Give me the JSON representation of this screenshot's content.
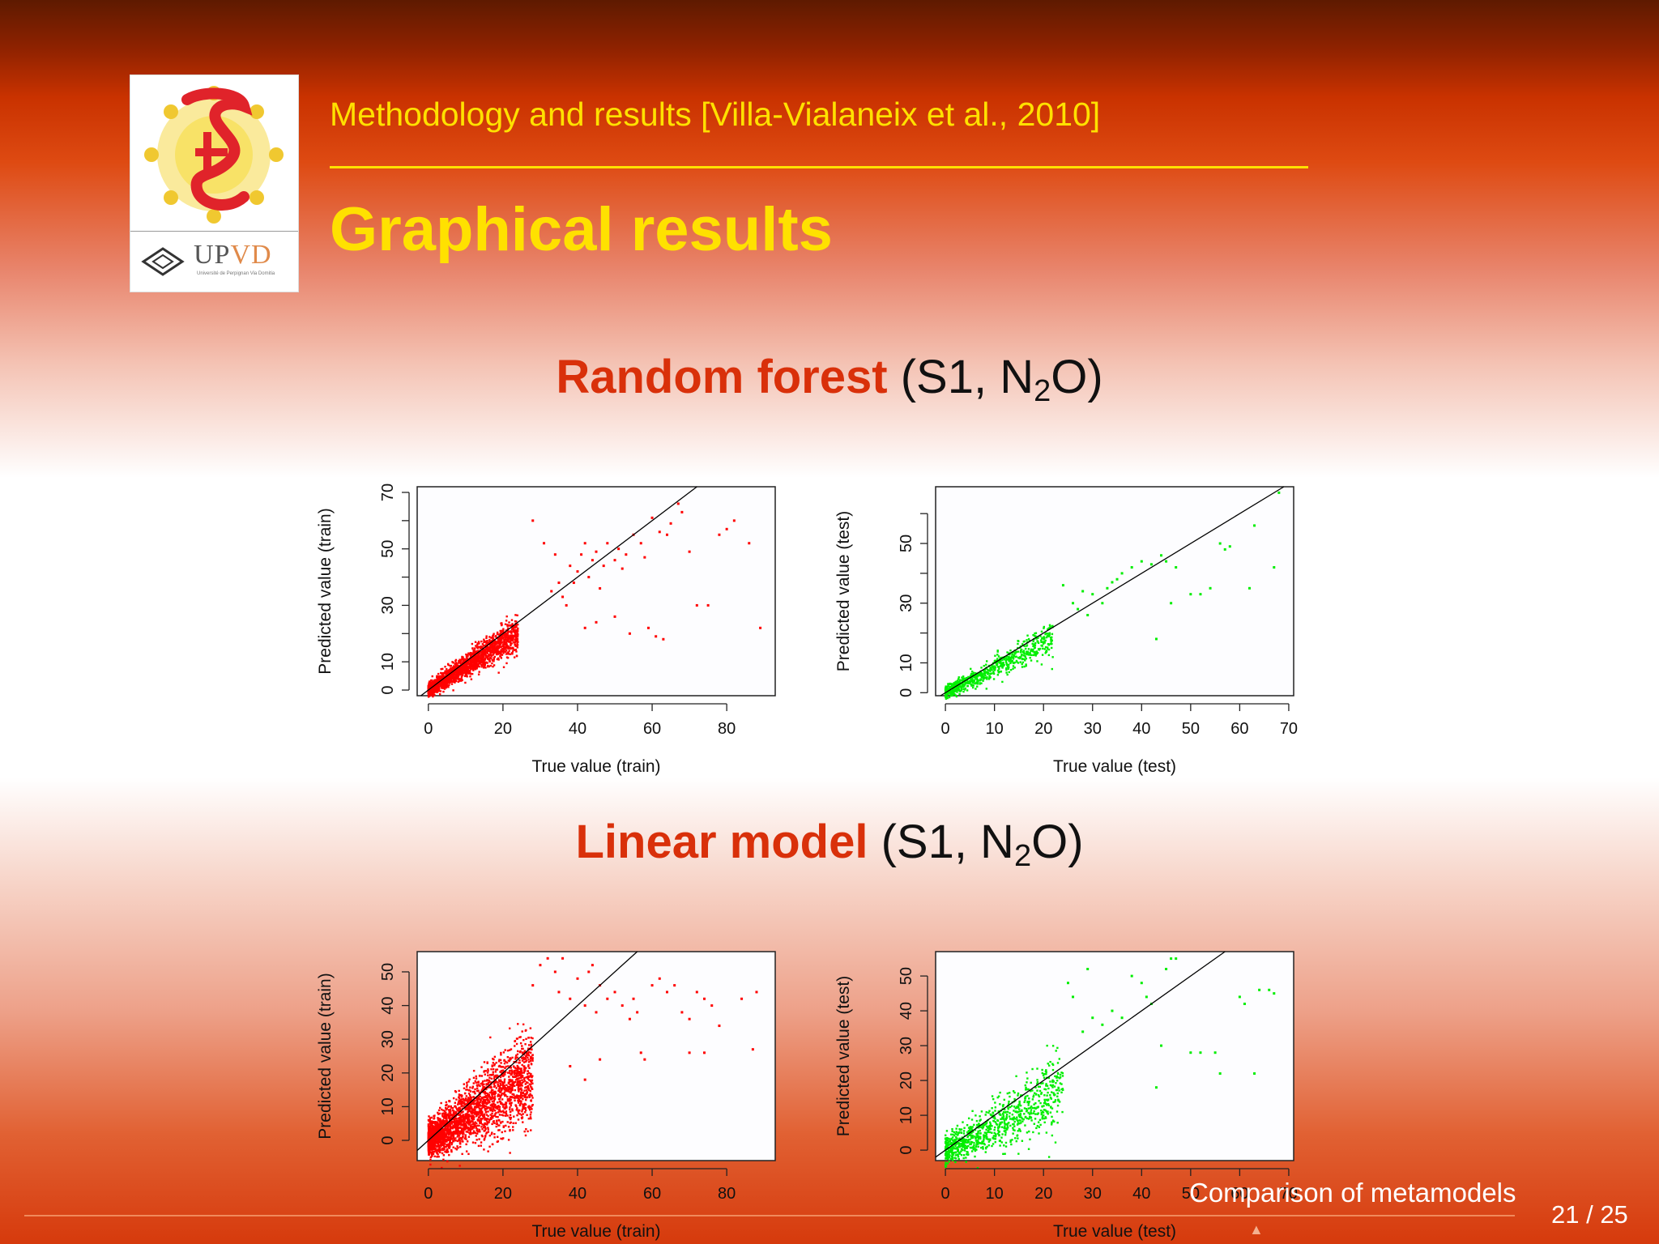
{
  "header": {
    "subtitle": "Methodology and results [Villa-Vialaneix et al., 2010]",
    "title": "Graphical results"
  },
  "logo": {
    "text_up": "UP",
    "text_vd": "VD",
    "university": "Université de Perpignan Via Domitia"
  },
  "sections": [
    {
      "highlight": "Random forest",
      "paren_open": " (S1, N",
      "sub": "2",
      "paren_close": "O)"
    },
    {
      "highlight": "Linear model",
      "paren_open": " (S1, N",
      "sub": "2",
      "paren_close": "O)"
    }
  ],
  "footer": {
    "section": "Comparison of metamodels",
    "page": "21 / 25"
  },
  "colors": {
    "train": "#ff0000",
    "test": "#00ee00",
    "accent": "#ffe100",
    "heading": "#d9300a"
  },
  "chart_data": [
    {
      "type": "scatter",
      "xlabel": "True value (train)",
      "ylabel": "Predicted value (train)",
      "xlim": [
        -3,
        93
      ],
      "ylim": [
        -2,
        72
      ],
      "xticks": [
        0,
        20,
        40,
        60,
        80
      ],
      "yticks": [
        0,
        10,
        30,
        50,
        70
      ],
      "ytick_marks": [
        0,
        10,
        20,
        30,
        40,
        50,
        60,
        70
      ],
      "color": "train",
      "diagonal": true,
      "cloud": {
        "n": 2000,
        "xmax": 24,
        "slope": 0.85,
        "spread": 2.2
      },
      "points": [
        [
          28,
          60
        ],
        [
          31,
          52
        ],
        [
          34,
          48
        ],
        [
          35,
          38
        ],
        [
          36,
          33
        ],
        [
          38,
          44
        ],
        [
          40,
          42
        ],
        [
          41,
          48
        ],
        [
          42,
          52
        ],
        [
          43,
          40
        ],
        [
          44,
          46
        ],
        [
          45,
          49
        ],
        [
          46,
          36
        ],
        [
          47,
          44
        ],
        [
          48,
          52
        ],
        [
          50,
          46
        ],
        [
          51,
          50
        ],
        [
          52,
          43
        ],
        [
          53,
          48
        ],
        [
          55,
          55
        ],
        [
          57,
          52
        ],
        [
          58,
          47
        ],
        [
          60,
          61
        ],
        [
          62,
          56
        ],
        [
          64,
          55
        ],
        [
          65,
          59
        ],
        [
          67,
          66
        ],
        [
          68,
          63
        ],
        [
          70,
          49
        ],
        [
          72,
          30
        ],
        [
          75,
          30
        ],
        [
          78,
          55
        ],
        [
          80,
          57
        ],
        [
          82,
          60
        ],
        [
          86,
          52
        ],
        [
          89,
          22
        ],
        [
          33,
          35
        ],
        [
          39,
          38
        ],
        [
          37,
          30
        ],
        [
          42,
          22
        ],
        [
          45,
          24
        ],
        [
          50,
          26
        ],
        [
          54,
          20
        ],
        [
          59,
          22
        ],
        [
          61,
          19
        ],
        [
          63,
          18
        ]
      ]
    },
    {
      "type": "scatter",
      "xlabel": "True value (test)",
      "ylabel": "Predicted value (test)",
      "xlim": [
        -2,
        71
      ],
      "ylim": [
        -1,
        69
      ],
      "xticks": [
        0,
        10,
        20,
        30,
        40,
        50,
        60,
        70
      ],
      "yticks": [
        0,
        10,
        30,
        50
      ],
      "ytick_marks": [
        0,
        10,
        20,
        30,
        40,
        50,
        60
      ],
      "color": "test",
      "diagonal": true,
      "cloud": {
        "n": 700,
        "xmax": 22,
        "slope": 0.85,
        "spread": 2.0
      },
      "points": [
        [
          24,
          36
        ],
        [
          26,
          30
        ],
        [
          27,
          28
        ],
        [
          28,
          34
        ],
        [
          29,
          26
        ],
        [
          30,
          33
        ],
        [
          32,
          30
        ],
        [
          33,
          35
        ],
        [
          34,
          37
        ],
        [
          35,
          38
        ],
        [
          36,
          40
        ],
        [
          38,
          42
        ],
        [
          40,
          44
        ],
        [
          42,
          43
        ],
        [
          43,
          18
        ],
        [
          44,
          46
        ],
        [
          45,
          44
        ],
        [
          46,
          30
        ],
        [
          47,
          42
        ],
        [
          50,
          33
        ],
        [
          52,
          33
        ],
        [
          54,
          35
        ],
        [
          56,
          50
        ],
        [
          57,
          48
        ],
        [
          58,
          49
        ],
        [
          62,
          35
        ],
        [
          63,
          56
        ],
        [
          67,
          42
        ],
        [
          68,
          67
        ]
      ]
    },
    {
      "type": "scatter",
      "xlabel": "True value (train)",
      "ylabel": "Predicted value (train)",
      "xlim": [
        -3,
        93
      ],
      "ylim": [
        -6,
        56
      ],
      "xticks": [
        0,
        20,
        40,
        60,
        80
      ],
      "yticks": [
        0,
        10,
        20,
        30,
        40,
        50
      ],
      "ytick_marks": [
        0,
        10,
        20,
        30,
        40,
        50
      ],
      "color": "train",
      "diagonal": true,
      "cloud": {
        "n": 2400,
        "xmax": 28,
        "slope": 0.7,
        "spread": 5.0
      },
      "points": [
        [
          28,
          46
        ],
        [
          30,
          52
        ],
        [
          32,
          54
        ],
        [
          34,
          50
        ],
        [
          35,
          44
        ],
        [
          36,
          54
        ],
        [
          38,
          42
        ],
        [
          40,
          48
        ],
        [
          42,
          40
        ],
        [
          43,
          50
        ],
        [
          44,
          52
        ],
        [
          45,
          38
        ],
        [
          46,
          46
        ],
        [
          48,
          42
        ],
        [
          50,
          44
        ],
        [
          52,
          40
        ],
        [
          54,
          36
        ],
        [
          55,
          42
        ],
        [
          56,
          38
        ],
        [
          57,
          26
        ],
        [
          58,
          24
        ],
        [
          60,
          46
        ],
        [
          62,
          48
        ],
        [
          64,
          44
        ],
        [
          66,
          46
        ],
        [
          68,
          38
        ],
        [
          70,
          36
        ],
        [
          72,
          44
        ],
        [
          74,
          42
        ],
        [
          76,
          40
        ],
        [
          78,
          34
        ],
        [
          84,
          42
        ],
        [
          88,
          44
        ],
        [
          70,
          26
        ],
        [
          74,
          26
        ],
        [
          87,
          27
        ],
        [
          38,
          22
        ],
        [
          42,
          18
        ],
        [
          46,
          24
        ]
      ]
    },
    {
      "type": "scatter",
      "xlabel": "True value (test)",
      "ylabel": "Predicted value (test)",
      "xlim": [
        -2,
        71
      ],
      "ylim": [
        -3,
        57
      ],
      "xticks": [
        0,
        10,
        20,
        30,
        40,
        50,
        60,
        70
      ],
      "yticks": [
        0,
        10,
        20,
        30,
        40,
        50
      ],
      "ytick_marks": [
        0,
        10,
        20,
        30,
        40,
        50
      ],
      "color": "test",
      "diagonal": true,
      "cloud": {
        "n": 900,
        "xmax": 24,
        "slope": 0.7,
        "spread": 4.0
      },
      "points": [
        [
          25,
          48
        ],
        [
          26,
          44
        ],
        [
          28,
          34
        ],
        [
          29,
          52
        ],
        [
          30,
          38
        ],
        [
          32,
          36
        ],
        [
          34,
          40
        ],
        [
          36,
          38
        ],
        [
          38,
          50
        ],
        [
          40,
          48
        ],
        [
          41,
          44
        ],
        [
          42,
          42
        ],
        [
          43,
          18
        ],
        [
          44,
          30
        ],
        [
          45,
          52
        ],
        [
          46,
          55
        ],
        [
          47,
          55
        ],
        [
          50,
          28
        ],
        [
          52,
          28
        ],
        [
          55,
          28
        ],
        [
          56,
          22
        ],
        [
          60,
          44
        ],
        [
          61,
          42
        ],
        [
          63,
          22
        ],
        [
          64,
          46
        ],
        [
          66,
          46
        ],
        [
          67,
          45
        ]
      ]
    }
  ]
}
